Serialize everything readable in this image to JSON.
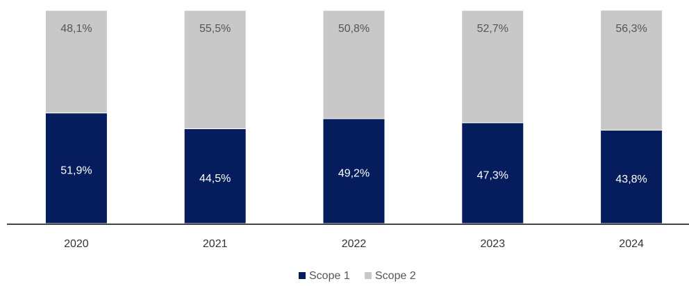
{
  "chart_data": {
    "type": "stacked_bar",
    "categories": [
      "2020",
      "2021",
      "2022",
      "2023",
      "2024"
    ],
    "series": [
      {
        "name": "Scope 1",
        "color": "#051d5c",
        "values": [
          51.9,
          44.5,
          49.2,
          47.3,
          43.8
        ],
        "value_labels": [
          "51,9%",
          "44,5%",
          "49,2%",
          "47,3%",
          "43,8%"
        ]
      },
      {
        "name": "Scope 2",
        "color": "#c8c8c8",
        "values": [
          48.1,
          55.5,
          50.8,
          52.7,
          56.3
        ],
        "value_labels": [
          "48,1%",
          "55,5%",
          "50,8%",
          "52,7%",
          "56,3%"
        ]
      }
    ],
    "ylim": [
      0,
      100
    ],
    "legend": "bottom"
  }
}
